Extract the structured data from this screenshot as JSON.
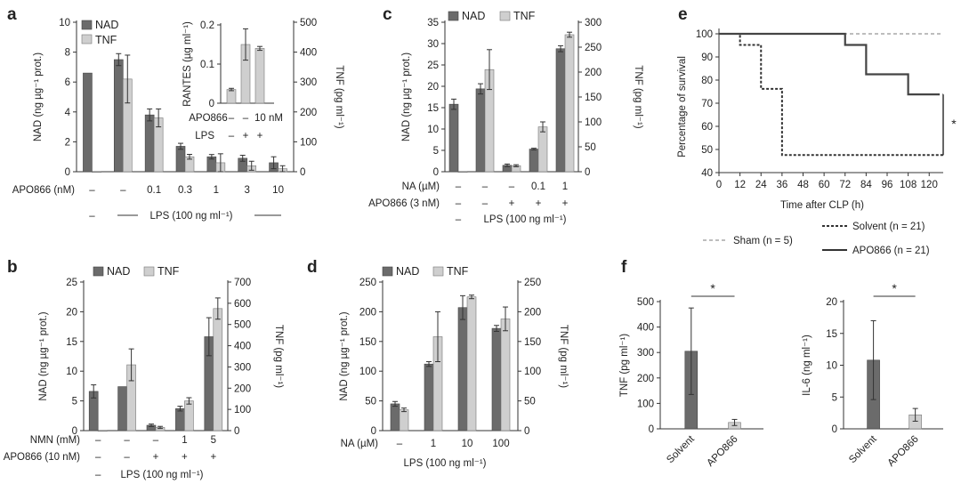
{
  "chart_data": [
    {
      "panel": "a",
      "type": "bar",
      "series_names": [
        "NAD",
        "TNF"
      ],
      "ylabel": "NAD (ng µg⁻¹ prot.)",
      "y2label": "TNF (pg ml⁻¹)",
      "ylim": [
        0,
        10
      ],
      "yticks": [
        "0",
        "2",
        "4",
        "6",
        "8",
        "10"
      ],
      "y2lim": [
        0,
        500
      ],
      "y2ticks": [
        "0",
        "100",
        "200",
        "300",
        "400",
        "500"
      ],
      "rows": [
        {
          "label": "APO866 (nM)",
          "cells": [
            "–",
            "–",
            "0.1",
            "0.3",
            "1",
            "3",
            "10"
          ]
        },
        {
          "label": "",
          "cells": [
            "–",
            "",
            "",
            "",
            "",
            "",
            ""
          ]
        }
      ],
      "lps_label": "LPS (100 ng ml⁻¹)",
      "nad": [
        6.6,
        7.5,
        3.8,
        1.7,
        1.0,
        0.9,
        0.6
      ],
      "nad_err": [
        0,
        0.4,
        0.4,
        0.2,
        0.15,
        0.2,
        0.4
      ],
      "tnf": [
        0,
        310,
        180,
        50,
        30,
        20,
        10
      ],
      "tnf_err": [
        0,
        80,
        30,
        8,
        30,
        15,
        10
      ],
      "inset": {
        "ylabel": "RANTES (µg ml⁻¹)",
        "ylim": [
          0,
          0.2
        ],
        "yticks": [
          "0",
          "0.1",
          "0.2"
        ],
        "values": [
          0.035,
          0.15,
          0.14
        ],
        "errors": [
          0.003,
          0.04,
          0.005
        ],
        "row1_label": "APO866",
        "row1": [
          "–",
          "–",
          "10 nM"
        ],
        "row2_label": "LPS",
        "row2": [
          "–",
          "+",
          "+"
        ]
      }
    },
    {
      "panel": "b",
      "type": "bar",
      "series_names": [
        "NAD",
        "TNF"
      ],
      "ylabel": "NAD (ng µg⁻¹ prot.)",
      "y2label": "TNF (pg ml⁻¹)",
      "ylim": [
        0,
        25
      ],
      "yticks": [
        "0",
        "5",
        "10",
        "15",
        "20",
        "25"
      ],
      "y2lim": [
        0,
        700
      ],
      "y2ticks": [
        "0",
        "100",
        "200",
        "300",
        "400",
        "500",
        "600",
        "700"
      ],
      "rows": [
        {
          "label": "NMN (mM)",
          "cells": [
            "–",
            "–",
            "–",
            "1",
            "5"
          ]
        },
        {
          "label": "APO866 (10 nM)",
          "cells": [
            "–",
            "–",
            "+",
            "+",
            "+"
          ]
        },
        {
          "label": "",
          "cells": [
            "–",
            "",
            "",
            "",
            ""
          ]
        }
      ],
      "lps_label": "LPS (100 ng ml⁻¹)",
      "nad": [
        6.6,
        7.4,
        0.9,
        3.7,
        15.8
      ],
      "nad_err": [
        1.1,
        0,
        0.2,
        0.4,
        3.2
      ],
      "tnf": [
        0,
        310,
        15,
        140,
        575
      ],
      "tnf_err": [
        0,
        75,
        5,
        15,
        50
      ]
    },
    {
      "panel": "c",
      "type": "bar",
      "series_names": [
        "NAD",
        "TNF"
      ],
      "ylabel": "NAD (ng µg⁻¹ prot.)",
      "y2label": "TNF (pg ml⁻¹)",
      "ylim": [
        0,
        35
      ],
      "yticks": [
        "0",
        "5",
        "10",
        "15",
        "20",
        "25",
        "30",
        "35"
      ],
      "y2lim": [
        0,
        300
      ],
      "y2ticks": [
        "0",
        "50",
        "100",
        "150",
        "200",
        "250",
        "300"
      ],
      "rows": [
        {
          "label": "NA (µM)",
          "cells": [
            "–",
            "–",
            "–",
            "0.1",
            "1"
          ]
        },
        {
          "label": "APO866 (3 nM)",
          "cells": [
            "–",
            "–",
            "+",
            "+",
            "+"
          ]
        },
        {
          "label": "",
          "cells": [
            "–",
            "",
            "",
            "",
            ""
          ]
        }
      ],
      "lps_label": "LPS (100 ng ml⁻¹)",
      "nad": [
        15.8,
        19.4,
        1.5,
        5.3,
        28.8
      ],
      "nad_err": [
        1.2,
        1.2,
        0.3,
        0.2,
        0.7
      ],
      "tnf": [
        0,
        205,
        12,
        90,
        275
      ],
      "tnf_err": [
        0,
        40,
        2,
        10,
        5
      ]
    },
    {
      "panel": "d",
      "type": "bar",
      "series_names": [
        "NAD",
        "TNF"
      ],
      "ylabel": "NAD (ng µg⁻¹ prot.)",
      "y2label": "TNF (pg ml⁻¹)",
      "ylim": [
        0,
        250
      ],
      "yticks": [
        "0",
        "50",
        "100",
        "150",
        "200",
        "250"
      ],
      "y2lim": [
        0,
        250
      ],
      "y2ticks": [
        "0",
        "50",
        "100",
        "150",
        "200",
        "250"
      ],
      "rows": [
        {
          "label": "NA (µM)",
          "cells": [
            "–",
            "1",
            "10",
            "100"
          ]
        }
      ],
      "lps_label": "LPS (100 ng ml⁻¹)",
      "nad": [
        45,
        112,
        207,
        172
      ],
      "nad_err": [
        4,
        4,
        20,
        5
      ],
      "tnf": [
        35,
        158,
        225,
        188
      ],
      "tnf_err": [
        3,
        42,
        3,
        20
      ]
    },
    {
      "panel": "e",
      "type": "line",
      "ylabel": "Percentage of survival",
      "xlabel": "Time after CLP (h)",
      "ylim": [
        40,
        100
      ],
      "yticks": [
        "40",
        "50",
        "60",
        "70",
        "80",
        "90",
        "100"
      ],
      "xlim": [
        0,
        128
      ],
      "xticks": [
        "0",
        "12",
        "24",
        "36",
        "48",
        "60",
        "72",
        "84",
        "96",
        "108",
        "120"
      ],
      "series": [
        {
          "name": "Sham",
          "n": "5",
          "style": "dashed-light",
          "x": [
            0,
            128
          ],
          "y": [
            100,
            100
          ]
        },
        {
          "name": "Solvent",
          "n": "21",
          "style": "dashed-dark",
          "x": [
            0,
            12,
            12,
            24,
            24,
            36,
            36,
            128
          ],
          "y": [
            100,
            100,
            95.2,
            95.2,
            76.2,
            76.2,
            47.6,
            47.6
          ]
        },
        {
          "name": "APO866",
          "n": "21",
          "style": "solid",
          "x": [
            0,
            72,
            72,
            84,
            84,
            108,
            108,
            126
          ],
          "y": [
            100,
            100,
            95.2,
            95.2,
            82.5,
            82.5,
            73.8,
            73.8
          ]
        }
      ],
      "significance": "*"
    },
    {
      "panel": "f1",
      "type": "bar",
      "ylabel": "TNF (pg ml⁻¹)",
      "ylim": [
        0,
        500
      ],
      "yticks": [
        "0",
        "100",
        "200",
        "300",
        "400",
        "500"
      ],
      "categories": [
        "Solvent",
        "APO866"
      ],
      "values": [
        305,
        25
      ],
      "errors": [
        170,
        12
      ],
      "significance": "*"
    },
    {
      "panel": "f2",
      "type": "bar",
      "ylabel": "IL-6 (ng ml⁻¹)",
      "ylim": [
        0,
        20
      ],
      "yticks": [
        "0",
        "5",
        "10",
        "15",
        "20"
      ],
      "categories": [
        "Solvent",
        "APO866"
      ],
      "values": [
        10.8,
        2.2
      ],
      "errors": [
        6.2,
        1.0
      ],
      "significance": "*"
    }
  ],
  "panels": {
    "a": "a",
    "b": "b",
    "c": "c",
    "d": "d",
    "e": "e",
    "f": "f"
  },
  "legend": {
    "nad": "NAD",
    "tnf": "TNF"
  },
  "colors": {
    "nad": "#6b6b6b",
    "tnf": "#cfcfcf"
  },
  "e_legend": {
    "sham": "Sham (n = 5)",
    "solvent": "Solvent (n = 21)",
    "apo": "APO866 (n = 21)"
  }
}
